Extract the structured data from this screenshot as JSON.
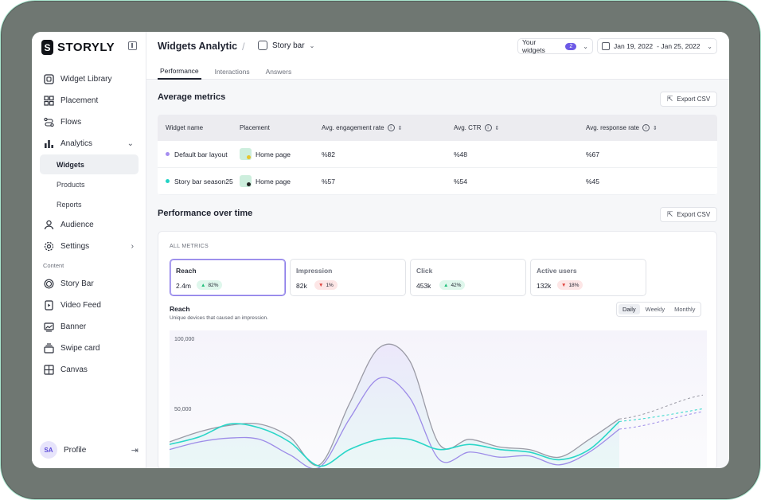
{
  "brand": {
    "logo_letter": "S",
    "name": "STORYLY"
  },
  "sidebar": {
    "items": [
      {
        "label": "Widget Library",
        "icon": "widget-library-icon"
      },
      {
        "label": "Placement",
        "icon": "placement-icon"
      },
      {
        "label": "Flows",
        "icon": "flows-icon"
      },
      {
        "label": "Analytics",
        "icon": "analytics-icon",
        "expanded": true
      }
    ],
    "analytics_sub": [
      {
        "label": "Widgets",
        "active": true
      },
      {
        "label": "Products"
      },
      {
        "label": "Reports"
      }
    ],
    "items2": [
      {
        "label": "Audience",
        "icon": "audience-icon"
      },
      {
        "label": "Settings",
        "icon": "settings-icon"
      }
    ],
    "content_label": "Content",
    "content_items": [
      {
        "label": "Story Bar",
        "icon": "story-bar-icon"
      },
      {
        "label": "Video Feed",
        "icon": "video-feed-icon"
      },
      {
        "label": "Banner",
        "icon": "banner-icon"
      },
      {
        "label": "Swipe card",
        "icon": "swipe-card-icon"
      },
      {
        "label": "Canvas",
        "icon": "canvas-icon"
      }
    ],
    "profile": {
      "initials": "SA",
      "name": "Profile"
    }
  },
  "header": {
    "title": "Widgets Analytic",
    "widget_selector": "Story bar",
    "your_widgets_label": "Your widgets",
    "your_widgets_count": "2",
    "date_start": "Jan 19, 2022",
    "date_end": "- Jan 25, 2022",
    "tabs": [
      "Performance",
      "Interactions",
      "Answers"
    ],
    "active_tab": "Performance"
  },
  "average_metrics": {
    "title": "Average metrics",
    "export_label": "Export CSV",
    "columns": [
      "Widget name",
      "Placement",
      "Avg. engagement rate",
      "Avg. CTR",
      "Avg. response rate"
    ],
    "rows": [
      {
        "name": "Default bar layout",
        "dot_color": "#a58df0",
        "placement": "Home page",
        "engagement": "%82",
        "ctr": "%48",
        "response": "%67"
      },
      {
        "name": "Story bar season25",
        "dot_color": "#22d3c5",
        "placement": "Home page",
        "engagement": "%57",
        "ctr": "%54",
        "response": "%45"
      }
    ]
  },
  "performance": {
    "title": "Performance over time",
    "export_label": "Export CSV",
    "all_metrics_label": "ALL METRICS",
    "metrics": [
      {
        "label": "Reach",
        "value": "2.4m",
        "change": "82%",
        "direction": "up",
        "active": true
      },
      {
        "label": "Impression",
        "value": "82k",
        "change": "1%",
        "direction": "down"
      },
      {
        "label": "Click",
        "value": "453k",
        "change": "42%",
        "direction": "up"
      },
      {
        "label": "Active users",
        "value": "132k",
        "change": "18%",
        "direction": "down"
      }
    ],
    "chart_title": "Reach",
    "chart_subtitle": "Unique devices that caused an impression.",
    "periods": [
      "Daily",
      "Weekly",
      "Monthly"
    ],
    "active_period": "Daily",
    "colors": {
      "grey_line": "#9b9ba6",
      "purple_line": "#9d8ce8",
      "teal_line": "#2ad6c8"
    }
  },
  "chart_data": {
    "type": "area",
    "y_ticks": [
      "100,000",
      "50,000"
    ],
    "ylim": [
      0,
      100000
    ],
    "series": [
      {
        "values": [
          20000,
          28000,
          33000,
          34000,
          24000,
          2000,
          50000,
          94000,
          84000,
          18000,
          22000,
          16000,
          14000,
          8000,
          22000,
          38000
        ]
      },
      {
        "values": [
          14000,
          20000,
          23000,
          22000,
          10000,
          0,
          38000,
          70000,
          55000,
          6000,
          12000,
          8000,
          9000,
          2000,
          12000,
          30000
        ]
      },
      {
        "values": [
          18000,
          24000,
          34000,
          31000,
          20000,
          1000,
          14000,
          22000,
          22000,
          14000,
          18000,
          14000,
          12000,
          6000,
          14000,
          36000
        ]
      }
    ]
  }
}
